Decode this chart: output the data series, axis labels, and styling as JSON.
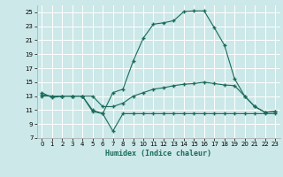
{
  "xlabel": "Humidex (Indice chaleur)",
  "bg_color": "#cce8e8",
  "line_color": "#1a6b5a",
  "grid_color": "#b8d8d8",
  "xlim": [
    -0.5,
    23.5
  ],
  "ylim": [
    7,
    26
  ],
  "xticks": [
    0,
    1,
    2,
    3,
    4,
    5,
    6,
    7,
    8,
    9,
    10,
    11,
    12,
    13,
    14,
    15,
    16,
    17,
    18,
    19,
    20,
    21,
    22,
    23
  ],
  "yticks": [
    7,
    9,
    11,
    13,
    15,
    17,
    19,
    21,
    23,
    25
  ],
  "line1_x": [
    0,
    1,
    2,
    3,
    4,
    5,
    6,
    7,
    8,
    9,
    10,
    11,
    12,
    13,
    14,
    15,
    16,
    17,
    18,
    19,
    20,
    21,
    22,
    23
  ],
  "line1_y": [
    13.5,
    12.8,
    13.0,
    13.0,
    13.0,
    10.8,
    10.5,
    13.5,
    14.0,
    18.0,
    21.3,
    23.3,
    23.5,
    23.8,
    25.1,
    25.2,
    25.2,
    22.8,
    20.3,
    15.5,
    13.0,
    11.5,
    10.7,
    10.8
  ],
  "line2_x": [
    0,
    1,
    2,
    3,
    4,
    5,
    6,
    7,
    8,
    9,
    10,
    11,
    12,
    13,
    14,
    15,
    16,
    17,
    18,
    19,
    20,
    21,
    22,
    23
  ],
  "line2_y": [
    13.2,
    13.0,
    13.0,
    13.0,
    13.0,
    13.0,
    11.5,
    11.5,
    12.0,
    13.0,
    13.5,
    14.0,
    14.2,
    14.5,
    14.7,
    14.8,
    15.0,
    14.8,
    14.6,
    14.5,
    13.0,
    11.5,
    10.7,
    10.8
  ],
  "line3_x": [
    0,
    1,
    2,
    3,
    4,
    5,
    6,
    7,
    8,
    9,
    10,
    11,
    12,
    13,
    14,
    15,
    16,
    17,
    18,
    19,
    20,
    21,
    22,
    23
  ],
  "line3_y": [
    13.0,
    13.0,
    13.0,
    13.0,
    13.0,
    11.0,
    10.5,
    8.0,
    10.5,
    10.5,
    10.5,
    10.5,
    10.5,
    10.5,
    10.5,
    10.5,
    10.5,
    10.5,
    10.5,
    10.5,
    10.5,
    10.5,
    10.5,
    10.5
  ]
}
